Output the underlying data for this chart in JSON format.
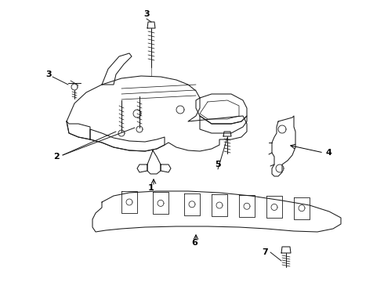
{
  "bg_color": "#ffffff",
  "line_color": "#1a1a1a",
  "label_color": "#000000",
  "font_size": 8,
  "font_weight": "bold",
  "lw": 0.75
}
